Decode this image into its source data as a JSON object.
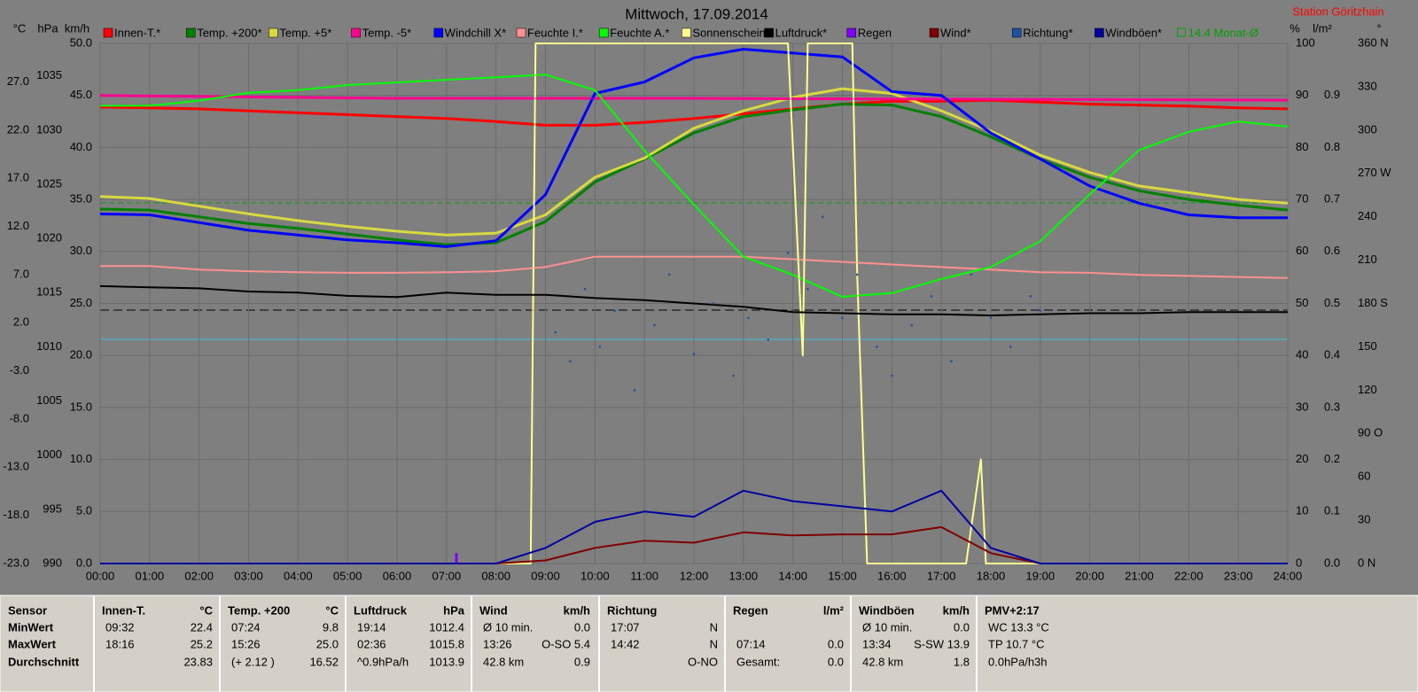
{
  "chart_data": {
    "type": "line",
    "title": "Mittwoch, 17.09.2014",
    "station": "Station Göritzhain",
    "xlim": [
      0,
      24
    ],
    "xticks": [
      {
        "value": 0,
        "label": "00:00"
      },
      {
        "value": 1,
        "label": "01:00"
      },
      {
        "value": 2,
        "label": "02:00"
      },
      {
        "value": 3,
        "label": "03:00"
      },
      {
        "value": 4,
        "label": "04:00"
      },
      {
        "value": 5,
        "label": "05:00"
      },
      {
        "value": 6,
        "label": "06:00"
      },
      {
        "value": 7,
        "label": "07:00"
      },
      {
        "value": 8,
        "label": "08:00"
      },
      {
        "value": 9,
        "label": "09:00"
      },
      {
        "value": 10,
        "label": "10:00"
      },
      {
        "value": 11,
        "label": "11:00"
      },
      {
        "value": 12,
        "label": "12:00"
      },
      {
        "value": 13,
        "label": "13:00"
      },
      {
        "value": 14,
        "label": "14:00"
      },
      {
        "value": 15,
        "label": "15:00"
      },
      {
        "value": 16,
        "label": "16:00"
      },
      {
        "value": 17,
        "label": "17:00"
      },
      {
        "value": 18,
        "label": "18:00"
      },
      {
        "value": 19,
        "label": "19:00"
      },
      {
        "value": 20,
        "label": "20:00"
      },
      {
        "value": 21,
        "label": "21:00"
      },
      {
        "value": 22,
        "label": "22:00"
      },
      {
        "value": 23,
        "label": "23:00"
      },
      {
        "value": 24,
        "label": "24:00"
      }
    ],
    "x": [
      0,
      1,
      2,
      3,
      4,
      5,
      6,
      7,
      8,
      9,
      10,
      11,
      12,
      13,
      14,
      15,
      16,
      17,
      18,
      19,
      20,
      21,
      22,
      23,
      24
    ],
    "grid": true,
    "grid_axis": "km/h",
    "axes": [
      {
        "unit": "°C",
        "lim": [
          -23,
          31
        ],
        "ticks": [
          {
            "value": -23,
            "label": "-23.0"
          },
          {
            "value": -18,
            "label": "-18.0"
          },
          {
            "value": -13,
            "label": "-13.0"
          },
          {
            "value": -8,
            "label": "-8.0"
          },
          {
            "value": -3,
            "label": "-3.0"
          },
          {
            "value": 2,
            "label": "2.0"
          },
          {
            "value": 7,
            "label": "7.0"
          },
          {
            "value": 12,
            "label": "12.0"
          },
          {
            "value": 17,
            "label": "17.0"
          },
          {
            "value": 22,
            "label": "22.0"
          },
          {
            "value": 27,
            "label": "27.0"
          }
        ]
      },
      {
        "unit": "hPa",
        "lim": [
          990,
          1038
        ],
        "ticks": [
          990,
          995,
          1000,
          1005,
          1010,
          1015,
          1020,
          1025,
          1030,
          1035
        ]
      },
      {
        "unit": "km/h",
        "lim": [
          0,
          50
        ],
        "ticks": [
          {
            "value": 0,
            "label": "0.0"
          },
          {
            "value": 5,
            "label": "5.0"
          },
          {
            "value": 10,
            "label": "10.0"
          },
          {
            "value": 15,
            "label": "15.0"
          },
          {
            "value": 20,
            "label": "20.0"
          },
          {
            "value": 25,
            "label": "25.0"
          },
          {
            "value": 30,
            "label": "30.0"
          },
          {
            "value": 35,
            "label": "35.0"
          },
          {
            "value": 40,
            "label": "40.0"
          },
          {
            "value": 45,
            "label": "45.0"
          },
          {
            "value": 50,
            "label": "50.0"
          }
        ]
      },
      {
        "unit": "%",
        "lim": [
          0,
          100
        ],
        "ticks": [
          0,
          10,
          20,
          30,
          40,
          50,
          60,
          70,
          80,
          90,
          100
        ]
      },
      {
        "unit": "l/m²",
        "lim": [
          0,
          1
        ],
        "ticks": [
          {
            "value": 0,
            "label": "0.0"
          },
          0.1,
          0.2,
          0.3,
          0.4,
          0.5,
          0.6,
          0.7,
          0.8,
          0.9
        ]
      },
      {
        "unit": "°",
        "lim": [
          0,
          360
        ],
        "ticks": [
          {
            "value": 0,
            "label": "0  N"
          },
          30,
          60,
          {
            "value": 90,
            "label": "90  O"
          },
          120,
          150,
          {
            "value": 180,
            "label": "180 S"
          },
          210,
          240,
          {
            "value": 270,
            "label": "270 W"
          },
          300,
          330,
          {
            "value": 360,
            "label": "360 N"
          }
        ]
      }
    ],
    "series": [
      {
        "name": "Innen-T.*",
        "color": "#ff0000",
        "axis": "°C",
        "kind": "line",
        "values": [
          24.4,
          24.3,
          24.2,
          24.0,
          23.8,
          23.6,
          23.4,
          23.2,
          22.9,
          22.5,
          22.5,
          22.8,
          23.2,
          23.7,
          24.2,
          24.7,
          25.0,
          25.0,
          25.1,
          24.9,
          24.7,
          24.6,
          24.5,
          24.3,
          24.2
        ]
      },
      {
        "name": "Temp. +200*",
        "color": "#008000",
        "axis": "°C",
        "kind": "line",
        "values": [
          13.8,
          13.7,
          13.0,
          12.3,
          11.8,
          11.2,
          10.6,
          10.1,
          10.3,
          12.5,
          16.6,
          19.0,
          21.7,
          23.4,
          24.1,
          24.7,
          24.6,
          23.4,
          21.3,
          19.0,
          17.1,
          15.7,
          14.8,
          14.2,
          13.7
        ]
      },
      {
        "name": "Temp. +5*",
        "color": "#d8d840",
        "axis": "°C",
        "kind": "line",
        "values": [
          15.1,
          14.9,
          14.1,
          13.3,
          12.6,
          12.0,
          11.5,
          11.1,
          11.3,
          13.2,
          17.1,
          19.1,
          22.2,
          24.0,
          25.4,
          26.3,
          25.8,
          24.0,
          21.9,
          19.4,
          17.6,
          16.2,
          15.5,
          14.8,
          14.4
        ]
      },
      {
        "name": "Temp. -5*",
        "color": "#ff0090",
        "axis": "°C",
        "kind": "line",
        "x": [
          0,
          6,
          12,
          18,
          24
        ],
        "values": [
          25.6,
          25.3,
          25.3,
          25.2,
          25.1
        ]
      },
      {
        "name": "Windchill X*",
        "color": "#0000ff",
        "axis": "°C",
        "kind": "line",
        "values": [
          13.3,
          13.2,
          12.4,
          11.6,
          11.1,
          10.6,
          10.3,
          9.9,
          10.5,
          15.3,
          25.8,
          27.0,
          29.5,
          30.4,
          30.0,
          29.6,
          26.0,
          25.6,
          21.7,
          19.0,
          16.2,
          14.4,
          13.2,
          12.9,
          12.9
        ]
      },
      {
        "name": "Feuchte I.*",
        "color": "#ff9090",
        "axis": "%",
        "kind": "line",
        "values": [
          57.2,
          57.2,
          56.5,
          56.2,
          56,
          55.9,
          55.9,
          56,
          56.2,
          57,
          59,
          59,
          59,
          59,
          58.5,
          58,
          57.5,
          57,
          56.5,
          56,
          55.9,
          55.5,
          55.3,
          55.1,
          54.9
        ]
      },
      {
        "name": "Feuchte A.*",
        "color": "#00ff00",
        "axis": "%",
        "kind": "line",
        "values": [
          88,
          88,
          89,
          90.5,
          91,
          92,
          92.5,
          93,
          93.5,
          94,
          91,
          79.4,
          69,
          59,
          55.5,
          51.3,
          52,
          54.7,
          57,
          62,
          71,
          79.5,
          83,
          85,
          84
        ]
      },
      {
        "name": "Sonnenschein",
        "color": "#ffff90",
        "axis": "%",
        "kind": "line",
        "x": [
          0,
          8.7,
          8.8,
          13.9,
          14.2,
          14.3,
          14.6,
          15.2,
          15.3,
          15.5,
          17.5,
          17.8,
          17.9,
          24
        ],
        "values": [
          0,
          0,
          100,
          100,
          40,
          100,
          100,
          100,
          55,
          0,
          0,
          20,
          0,
          0
        ]
      },
      {
        "name": "Luftdruck*",
        "color": "#000000",
        "axis": "hPa",
        "kind": "line",
        "values": [
          1015.6,
          1015.5,
          1015.4,
          1015.1,
          1015.0,
          1014.7,
          1014.6,
          1015.0,
          1014.8,
          1014.8,
          1014.5,
          1014.3,
          1014.0,
          1013.7,
          1013.2,
          1013.1,
          1013.0,
          1013.0,
          1012.9,
          1013.0,
          1013.1,
          1013.1,
          1013.2,
          1013.2,
          1013.2
        ]
      },
      {
        "name": "Regen",
        "color": "#8000ff",
        "axis": "l/m²",
        "kind": "bar",
        "x": [
          7.2
        ],
        "values": [
          0.02
        ]
      },
      {
        "name": "Wind*",
        "color": "#800000",
        "axis": "km/h",
        "kind": "line",
        "values": [
          0,
          0,
          0,
          0,
          0,
          0,
          0,
          0,
          0,
          0.3,
          1.5,
          2.2,
          2.0,
          3.0,
          2.7,
          2.8,
          2.8,
          3.5,
          1.0,
          0,
          0,
          0,
          0,
          0,
          0
        ]
      },
      {
        "name": "Richtung*",
        "color": "#2050a0",
        "axis": "°",
        "kind": "scatter",
        "x": [
          9.2,
          9.5,
          9.8,
          10.1,
          10.4,
          10.8,
          11.2,
          11.5,
          12,
          12.4,
          12.8,
          13.1,
          13.5,
          13.9,
          14.3,
          14.6,
          15,
          15.3,
          15.7,
          16,
          16.4,
          16.8,
          17.2,
          17.6,
          18,
          18.4,
          18.8,
          19
        ],
        "values": [
          160,
          140,
          190,
          150,
          175,
          120,
          165,
          200,
          145,
          180,
          130,
          170,
          155,
          215,
          190,
          240,
          170,
          200,
          150,
          130,
          165,
          185,
          140,
          200,
          170,
          150,
          185,
          175
        ]
      },
      {
        "name": "Windböen*",
        "color": "#0000a0",
        "axis": "km/h",
        "kind": "line",
        "values": [
          0,
          0,
          0,
          0,
          0,
          0,
          0,
          0,
          0,
          1.5,
          4.0,
          5.0,
          4.5,
          7.0,
          6.0,
          5.5,
          5.0,
          7.0,
          1.5,
          0,
          0,
          0,
          0,
          0,
          0
        ]
      }
    ],
    "monthly_average": {
      "label": "14.4 Monat-Ø",
      "color": "#00a000"
    },
    "table": {
      "columns": [
        {
          "title": "Sensor",
          "rows": [
            {
              "l": "MinWert"
            },
            {
              "l": "MaxWert"
            },
            {
              "l": "Durchschnitt"
            }
          ]
        },
        {
          "title": "Innen-T.",
          "unit": "°C",
          "rows": [
            {
              "l": "09:32",
              "r": "22.4"
            },
            {
              "l": "18:16",
              "r": "25.2"
            },
            {
              "r": "23.83"
            }
          ]
        },
        {
          "title": "Temp. +200",
          "unit": "°C",
          "rows": [
            {
              "l": "07:24",
              "r": "9.8"
            },
            {
              "l": "15:26",
              "r": "25.0"
            },
            {
              "l": "(+ 2.12 )",
              "r": "16.52"
            }
          ]
        },
        {
          "title": "Luftdruck",
          "unit": "hPa",
          "rows": [
            {
              "l": "19:14",
              "r": "1012.4"
            },
            {
              "l": "02:36",
              "r": "1015.8"
            },
            {
              "l": "^0.9hPa/h",
              "r": "1013.9"
            }
          ]
        },
        {
          "title": "Wind",
          "unit": "km/h",
          "rows": [
            {
              "l": "Ø 10 min.",
              "r": "0.0"
            },
            {
              "l": "13:26",
              "r": "O-SO 5.4"
            },
            {
              "l": "42.8 km",
              "r": "0.9"
            }
          ]
        },
        {
          "title": "Richtung",
          "rows": [
            {
              "l": "17:07",
              "r": "N"
            },
            {
              "l": "14:42",
              "r": "N"
            },
            {
              "r": "O-NO"
            }
          ]
        },
        {
          "title": "Regen",
          "unit": "l/m²",
          "rows": [
            {},
            {
              "l": "07:14",
              "r": "0.0"
            },
            {
              "l": "Gesamt:",
              "r": "0.0"
            }
          ]
        },
        {
          "title": "Windböen",
          "unit": "km/h",
          "rows": [
            {
              "l": "Ø 10 min.",
              "r": "0.0"
            },
            {
              "l": "13:34",
              "r": "S-SW 13.9"
            },
            {
              "l": "42.8 km",
              "r": "1.8"
            }
          ]
        },
        {
          "title": "PMV+2:17",
          "rows": [
            {
              "l": "WC 13.3 °C"
            },
            {
              "l": "TP 10.7 °C"
            },
            {
              "l": "0.0hPa/h3h"
            }
          ]
        }
      ]
    }
  }
}
